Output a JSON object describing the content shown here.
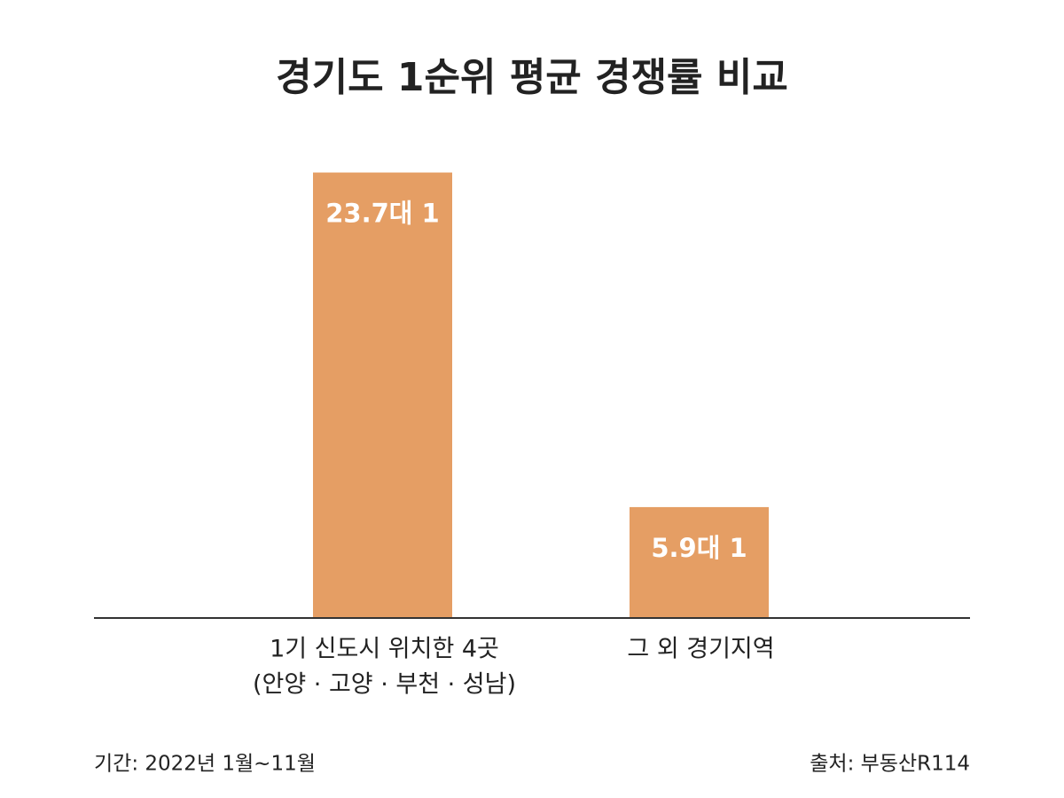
{
  "chart_data": {
    "type": "bar",
    "title": "경기도 1순위 평균 경쟁률 비교",
    "categories": [
      [
        "1기 신도시 위치한 4곳",
        "(안양 · 고양 · 부천 · 성남)"
      ],
      [
        "그 외 경기지역"
      ]
    ],
    "values": [
      23.7,
      5.9
    ],
    "value_labels": [
      "23.7대 1",
      "5.9대 1"
    ],
    "color": "#e59e64",
    "ylim": [
      0,
      25
    ],
    "period": "기간: 2022년 1월~11월",
    "source": "출처: 부동산R114"
  }
}
